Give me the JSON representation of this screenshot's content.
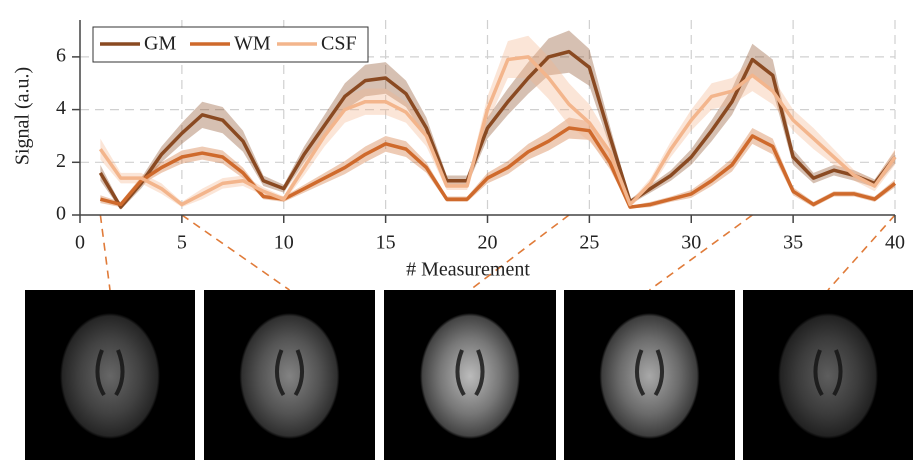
{
  "chart_data": {
    "type": "line",
    "xlabel": "# Measurement",
    "ylabel": "Signal (a.u.)",
    "x": [
      1,
      2,
      3,
      4,
      5,
      6,
      7,
      8,
      9,
      10,
      11,
      12,
      13,
      14,
      15,
      16,
      17,
      18,
      19,
      20,
      21,
      22,
      23,
      24,
      25,
      26,
      27,
      28,
      29,
      30,
      31,
      32,
      33,
      34,
      35,
      36,
      37,
      38,
      39,
      40
    ],
    "series": [
      {
        "name": "GM",
        "color": "#8a4a22",
        "values": [
          1.6,
          0.3,
          1.2,
          2.3,
          3.1,
          3.8,
          3.6,
          2.8,
          1.3,
          1.0,
          2.3,
          3.4,
          4.5,
          5.1,
          5.2,
          4.6,
          3.3,
          1.3,
          1.3,
          3.3,
          4.3,
          5.2,
          6.0,
          6.2,
          5.6,
          3.0,
          0.5,
          1.0,
          1.5,
          2.2,
          3.2,
          4.3,
          5.9,
          5.3,
          2.2,
          1.4,
          1.7,
          1.5,
          1.2,
          2.2
        ],
        "error": [
          0.3,
          0.1,
          0.2,
          0.3,
          0.4,
          0.5,
          0.5,
          0.4,
          0.2,
          0.15,
          0.3,
          0.4,
          0.5,
          0.6,
          0.6,
          0.5,
          0.4,
          0.2,
          0.2,
          0.4,
          0.5,
          0.6,
          0.7,
          0.8,
          0.7,
          0.4,
          0.1,
          0.15,
          0.2,
          0.3,
          0.4,
          0.5,
          0.6,
          0.6,
          0.3,
          0.2,
          0.2,
          0.2,
          0.15,
          0.25
        ]
      },
      {
        "name": "WM",
        "color": "#cf6a2c",
        "values": [
          0.6,
          0.4,
          1.3,
          1.8,
          2.2,
          2.35,
          2.2,
          1.6,
          0.7,
          0.6,
          1.0,
          1.4,
          1.8,
          2.3,
          2.7,
          2.5,
          1.8,
          0.6,
          0.6,
          1.4,
          1.8,
          2.4,
          2.8,
          3.3,
          3.2,
          2.0,
          0.3,
          0.4,
          0.6,
          0.8,
          1.3,
          1.9,
          3.0,
          2.6,
          0.9,
          0.4,
          0.8,
          0.8,
          0.6,
          1.2
        ],
        "error": [
          0.15,
          0.1,
          0.15,
          0.2,
          0.25,
          0.25,
          0.25,
          0.2,
          0.1,
          0.1,
          0.15,
          0.2,
          0.25,
          0.3,
          0.3,
          0.3,
          0.2,
          0.1,
          0.1,
          0.2,
          0.25,
          0.3,
          0.35,
          0.4,
          0.35,
          0.25,
          0.05,
          0.1,
          0.1,
          0.15,
          0.2,
          0.25,
          0.3,
          0.3,
          0.15,
          0.1,
          0.1,
          0.1,
          0.1,
          0.15
        ]
      },
      {
        "name": "CSF",
        "color": "#f3b58c",
        "values": [
          2.5,
          1.4,
          1.4,
          1.0,
          0.4,
          0.8,
          1.2,
          1.3,
          0.9,
          0.6,
          1.8,
          3.0,
          4.0,
          4.3,
          4.3,
          3.9,
          3.0,
          1.1,
          1.1,
          4.0,
          5.9,
          6.0,
          5.2,
          4.2,
          3.5,
          2.4,
          0.4,
          1.2,
          2.5,
          3.6,
          4.5,
          4.7,
          5.3,
          4.7,
          3.6,
          2.9,
          2.2,
          1.5,
          1.1,
          2.2
        ],
        "error": [
          0.4,
          0.2,
          0.2,
          0.2,
          0.1,
          0.2,
          0.2,
          0.2,
          0.15,
          0.1,
          0.3,
          0.4,
          0.5,
          0.5,
          0.5,
          0.4,
          0.4,
          0.15,
          0.15,
          0.5,
          0.7,
          0.8,
          0.8,
          0.8,
          0.7,
          0.5,
          0.1,
          0.2,
          0.3,
          0.4,
          0.5,
          0.5,
          0.6,
          0.5,
          0.4,
          0.4,
          0.3,
          0.2,
          0.2,
          0.3
        ]
      }
    ],
    "xlim": [
      0,
      40
    ],
    "xticks": [
      0,
      5,
      10,
      15,
      20,
      25,
      30,
      35,
      40
    ],
    "ylim": [
      0,
      7.4
    ],
    "yticks": [
      0,
      2,
      4,
      6
    ],
    "grid": true,
    "legend": "upper left",
    "image_measurements": [
      1,
      5,
      24,
      33,
      40
    ]
  }
}
